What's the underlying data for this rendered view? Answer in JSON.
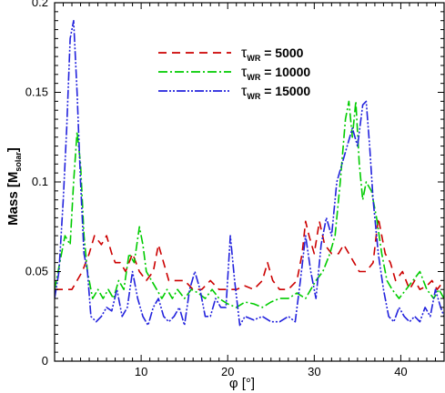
{
  "chart_data": {
    "type": "line",
    "title": "",
    "xlabel": "φ [°]",
    "ylabel_main": "Mass [M",
    "ylabel_sub": "solar",
    "ylabel_end": "]",
    "xlim": [
      0,
      45
    ],
    "ylim": [
      0,
      0.2
    ],
    "xticks": [
      10,
      20,
      30,
      40
    ],
    "xtick_labels": [
      "10",
      "20",
      "30",
      "40"
    ],
    "yticks": [
      0,
      0.05,
      0.1,
      0.15,
      0.2
    ],
    "ytick_labels": [
      "0",
      "0.05",
      "0.1",
      "0.15",
      "0.2"
    ],
    "grid": false,
    "legend_position": "top-center",
    "series": [
      {
        "name": "τWR = 5000",
        "legend_symbol": "τ",
        "legend_sub": "WR",
        "legend_value": " = 5000",
        "color": "#cc0000",
        "dash": "9,6",
        "x": [
          0.0,
          1.0,
          2.0,
          2.6,
          3.2,
          4.0,
          4.6,
          5.4,
          6.0,
          6.6,
          7.0,
          7.6,
          8.2,
          9.0,
          9.8,
          10.6,
          11.4,
          12.0,
          12.6,
          13.2,
          14.0,
          15.0,
          16.0,
          17.0,
          18.0,
          19.0,
          20.0,
          21.0,
          22.0,
          23.0,
          24.0,
          24.6,
          25.2,
          26.0,
          27.0,
          28.0,
          28.6,
          29.0,
          29.4,
          30.0,
          30.6,
          31.2,
          32.0,
          32.8,
          33.4,
          34.0,
          34.6,
          35.2,
          36.0,
          36.8,
          37.4,
          38.2,
          38.8,
          39.4,
          40.2,
          41.0,
          41.6,
          42.2,
          43.0,
          43.6,
          44.2,
          45.0
        ],
        "y": [
          0.04,
          0.04,
          0.04,
          0.045,
          0.05,
          0.06,
          0.07,
          0.065,
          0.07,
          0.06,
          0.055,
          0.055,
          0.05,
          0.06,
          0.05,
          0.045,
          0.05,
          0.065,
          0.055,
          0.045,
          0.045,
          0.045,
          0.04,
          0.04,
          0.045,
          0.04,
          0.04,
          0.04,
          0.042,
          0.04,
          0.045,
          0.055,
          0.045,
          0.04,
          0.04,
          0.045,
          0.06,
          0.078,
          0.07,
          0.06,
          0.078,
          0.065,
          0.06,
          0.06,
          0.065,
          0.06,
          0.055,
          0.05,
          0.05,
          0.055,
          0.08,
          0.06,
          0.055,
          0.045,
          0.05,
          0.04,
          0.045,
          0.04,
          0.042,
          0.045,
          0.04,
          0.045
        ]
      },
      {
        "name": "τWR = 10000",
        "legend_symbol": "τ",
        "legend_sub": "WR",
        "legend_value": " = 10000",
        "color": "#00cc00",
        "dash": "10,3,2,3",
        "x": [
          0.0,
          0.6,
          1.2,
          1.8,
          2.2,
          2.6,
          3.0,
          3.4,
          3.8,
          4.4,
          5.0,
          5.6,
          6.2,
          6.8,
          7.4,
          8.0,
          8.6,
          9.2,
          9.8,
          10.2,
          10.6,
          11.2,
          11.8,
          12.4,
          13.0,
          13.6,
          14.2,
          15.0,
          15.8,
          16.6,
          17.4,
          18.2,
          19.0,
          20.0,
          21.0,
          22.0,
          23.0,
          24.0,
          25.0,
          26.0,
          27.0,
          28.0,
          29.0,
          29.6,
          30.2,
          31.0,
          31.8,
          32.4,
          33.0,
          33.6,
          34.0,
          34.4,
          34.8,
          35.2,
          35.6,
          36.0,
          36.6,
          37.2,
          37.8,
          38.4,
          39.0,
          39.8,
          40.6,
          41.4,
          42.2,
          43.0,
          43.8,
          44.4,
          45.0
        ],
        "y": [
          0.04,
          0.055,
          0.07,
          0.065,
          0.1,
          0.128,
          0.11,
          0.07,
          0.05,
          0.035,
          0.04,
          0.035,
          0.04,
          0.035,
          0.045,
          0.04,
          0.06,
          0.055,
          0.075,
          0.065,
          0.05,
          0.045,
          0.04,
          0.035,
          0.04,
          0.035,
          0.04,
          0.035,
          0.04,
          0.038,
          0.035,
          0.04,
          0.035,
          0.032,
          0.03,
          0.033,
          0.032,
          0.03,
          0.033,
          0.035,
          0.035,
          0.038,
          0.035,
          0.04,
          0.045,
          0.05,
          0.06,
          0.07,
          0.1,
          0.135,
          0.145,
          0.125,
          0.145,
          0.11,
          0.09,
          0.1,
          0.095,
          0.08,
          0.06,
          0.045,
          0.04,
          0.035,
          0.04,
          0.045,
          0.05,
          0.04,
          0.035,
          0.04,
          0.035
        ]
      },
      {
        "name": "τWR = 15000",
        "legend_symbol": "τ",
        "legend_sub": "WR",
        "legend_value": " = 15000",
        "color": "#2222dd",
        "dash": "10,2,2,2,2,2",
        "x": [
          0.0,
          0.5,
          1.0,
          1.4,
          1.8,
          2.2,
          2.6,
          3.0,
          3.4,
          3.8,
          4.2,
          4.8,
          5.4,
          6.0,
          6.6,
          7.2,
          7.8,
          8.4,
          9.0,
          9.6,
          10.2,
          10.8,
          11.4,
          12.0,
          12.6,
          13.2,
          13.8,
          14.4,
          15.0,
          15.6,
          16.2,
          16.8,
          17.4,
          18.0,
          18.6,
          19.2,
          19.8,
          20.3,
          20.8,
          21.4,
          22.0,
          23.0,
          24.0,
          25.0,
          26.0,
          27.0,
          27.8,
          28.4,
          29.0,
          29.6,
          30.2,
          30.8,
          31.4,
          32.0,
          32.6,
          33.2,
          33.8,
          34.4,
          35.0,
          35.6,
          36.0,
          36.4,
          36.8,
          37.4,
          38.0,
          38.6,
          39.2,
          39.8,
          40.4,
          41.0,
          41.6,
          42.2,
          42.8,
          43.4,
          44.0,
          44.6,
          45.0
        ],
        "y": [
          0.035,
          0.05,
          0.09,
          0.13,
          0.18,
          0.19,
          0.15,
          0.1,
          0.06,
          0.05,
          0.025,
          0.022,
          0.025,
          0.03,
          0.028,
          0.04,
          0.025,
          0.03,
          0.05,
          0.035,
          0.025,
          0.02,
          0.03,
          0.035,
          0.025,
          0.022,
          0.025,
          0.03,
          0.02,
          0.04,
          0.05,
          0.04,
          0.025,
          0.025,
          0.035,
          0.03,
          0.03,
          0.07,
          0.045,
          0.02,
          0.025,
          0.023,
          0.025,
          0.022,
          0.022,
          0.025,
          0.022,
          0.045,
          0.07,
          0.05,
          0.035,
          0.065,
          0.08,
          0.07,
          0.1,
          0.11,
          0.12,
          0.13,
          0.12,
          0.143,
          0.145,
          0.12,
          0.09,
          0.06,
          0.04,
          0.025,
          0.022,
          0.03,
          0.025,
          0.022,
          0.025,
          0.022,
          0.03,
          0.025,
          0.04,
          0.03,
          0.025
        ]
      }
    ]
  }
}
